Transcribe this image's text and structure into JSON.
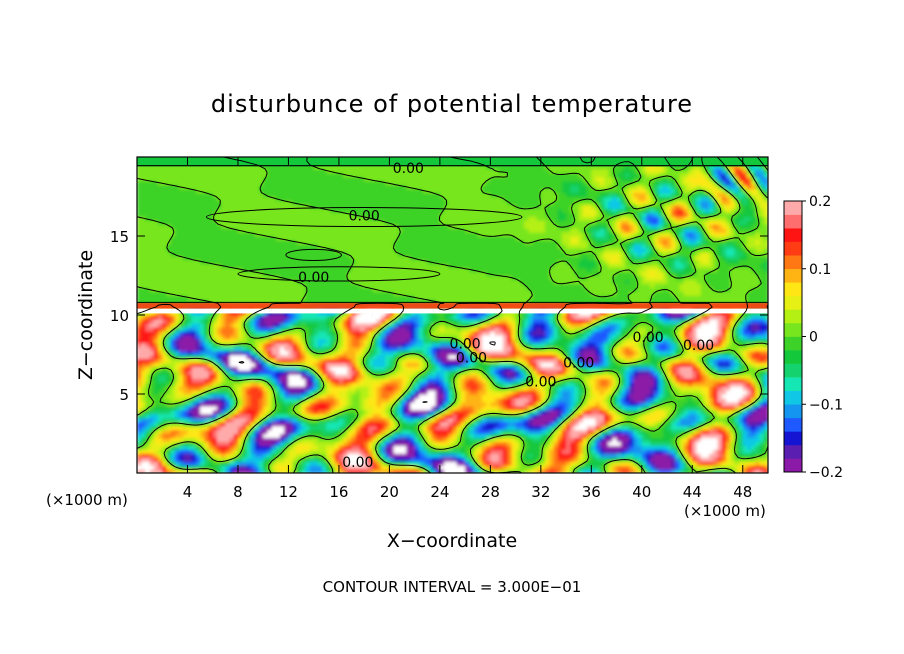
{
  "chart_data": {
    "type": "heatmap",
    "title": "disturbunce of potential temperature",
    "xlabel": "X−coordinate",
    "ylabel": "Z−coordinate",
    "x_unit_left": "(×1000 m)",
    "x_unit_right": "(×1000 m)",
    "footer": "CONTOUR INTERVAL = 3.000E−01",
    "xlim": [
      0,
      50
    ],
    "ylim": [
      0,
      20
    ],
    "x_ticks": [
      4,
      8,
      12,
      16,
      20,
      24,
      28,
      32,
      36,
      40,
      44,
      48
    ],
    "y_ticks": [
      5,
      10,
      15
    ],
    "colorbar": {
      "min": -0.2,
      "max": 0.2,
      "ticks": [
        0.2,
        0.1,
        0,
        -0.1,
        -0.2
      ],
      "tick_labels": [
        "0.2",
        "0.1",
        "0",
        "−0.1",
        "−0.2"
      ],
      "colors": [
        "#8c1aa8",
        "#5a1fb0",
        "#1414d2",
        "#1e5aff",
        "#1496f0",
        "#10c8e6",
        "#14e6b4",
        "#14d26e",
        "#14c83c",
        "#3cd228",
        "#78e61e",
        "#b4f014",
        "#e6f014",
        "#ffe614",
        "#ffb414",
        "#ff7814",
        "#ff3c14",
        "#ff1414",
        "#ff6e6e",
        "#ffaaaa"
      ]
    },
    "contour_labels": [
      {
        "text": "0.00",
        "x": 21.5,
        "z": 19.3
      },
      {
        "text": "0.00",
        "x": 18.0,
        "z": 16.3
      },
      {
        "text": "0.00",
        "x": 14.0,
        "z": 12.4
      },
      {
        "text": "0.00",
        "x": 26.0,
        "z": 8.2
      },
      {
        "text": "0.00",
        "x": 26.5,
        "z": 7.3
      },
      {
        "text": "0.00",
        "x": 35.0,
        "z": 7.0
      },
      {
        "text": "0.00",
        "x": 32.0,
        "z": 5.8
      },
      {
        "text": "0.00",
        "x": 40.5,
        "z": 8.6
      },
      {
        "text": "0.00",
        "x": 44.5,
        "z": 8.1
      },
      {
        "text": "0.00",
        "x": 17.5,
        "z": 0.7
      }
    ],
    "grid": false
  }
}
